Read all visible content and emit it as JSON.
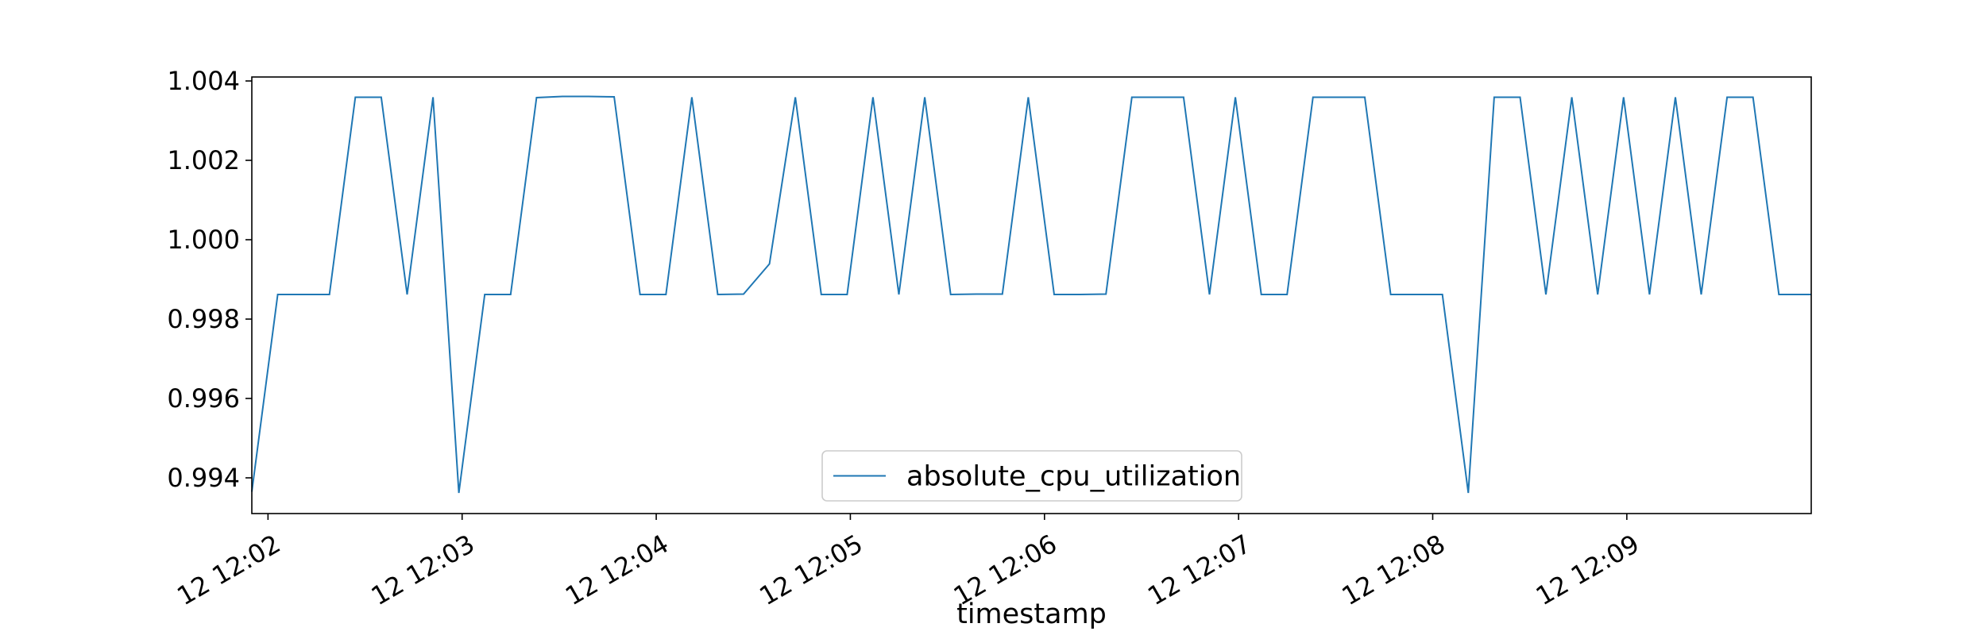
{
  "chart_data": {
    "type": "line",
    "title": "",
    "xlabel": "timestamp",
    "ylabel": "",
    "legend": "bottom-center",
    "grid": false,
    "line_color": "#1f77b4",
    "xlim": [
      "12 12:01:55",
      "12 12:09:57"
    ],
    "ylim": [
      0.9931,
      1.0041
    ],
    "x_ticks": [
      "12 12:02",
      "12 12:03",
      "12 12:04",
      "12 12:05",
      "12 12:06",
      "12 12:07",
      "12 12:08",
      "12 12:09"
    ],
    "y_ticks": [
      "0.994",
      "0.996",
      "0.998",
      "1.000",
      "1.002",
      "1.004"
    ],
    "series": [
      {
        "name": "absolute_cpu_utilization",
        "x": [
          "12 12:01:55",
          "12 12:02:03",
          "12 12:02:11",
          "12 12:02:19",
          "12 12:02:27",
          "12 12:02:35",
          "12 12:02:43",
          "12 12:02:51",
          "12 12:02:59",
          "12 12:03:07",
          "12 12:03:15",
          "12 12:03:23",
          "12 12:03:31",
          "12 12:03:39",
          "12 12:03:47",
          "12 12:03:55",
          "12 12:04:03",
          "12 12:04:11",
          "12 12:04:19",
          "12 12:04:27",
          "12 12:04:35",
          "12 12:04:43",
          "12 12:04:51",
          "12 12:04:59",
          "12 12:05:07",
          "12 12:05:15",
          "12 12:05:23",
          "12 12:05:31",
          "12 12:05:39",
          "12 12:05:47",
          "12 12:05:55",
          "12 12:06:03",
          "12 12:06:11",
          "12 12:06:19",
          "12 12:06:27",
          "12 12:06:35",
          "12 12:06:43",
          "12 12:06:51",
          "12 12:06:59",
          "12 12:07:07",
          "12 12:07:15",
          "12 12:07:23",
          "12 12:07:31",
          "12 12:07:39",
          "12 12:07:47",
          "12 12:07:55",
          "12 12:08:03",
          "12 12:08:11",
          "12 12:08:19",
          "12 12:08:27",
          "12 12:08:35",
          "12 12:08:43",
          "12 12:08:51",
          "12 12:08:59",
          "12 12:09:07",
          "12 12:09:15",
          "12 12:09:23",
          "12 12:09:31",
          "12 12:09:39",
          "12 12:09:47",
          "12 12:09:57"
        ],
        "values": [
          0.99365,
          0.99862,
          0.99862,
          0.99862,
          1.00359,
          1.00359,
          0.99862,
          1.00359,
          0.99362,
          0.99862,
          0.99862,
          1.00358,
          1.00361,
          1.00361,
          1.0036,
          0.99862,
          0.99862,
          1.00359,
          0.99862,
          0.99863,
          0.99939,
          1.00359,
          0.99862,
          0.99862,
          1.00359,
          0.99862,
          1.00359,
          0.99862,
          0.99863,
          0.99863,
          1.00359,
          0.99862,
          0.99862,
          0.99863,
          1.00359,
          1.00359,
          1.00359,
          0.99862,
          1.00359,
          0.99862,
          0.99862,
          1.00359,
          1.00359,
          1.00359,
          0.99862,
          0.99862,
          0.99862,
          0.99362,
          1.00359,
          1.00359,
          0.99862,
          1.00359,
          0.99862,
          1.00359,
          0.99862,
          1.00359,
          0.99862,
          1.00359,
          1.00359,
          0.99862,
          0.99862
        ]
      }
    ]
  }
}
